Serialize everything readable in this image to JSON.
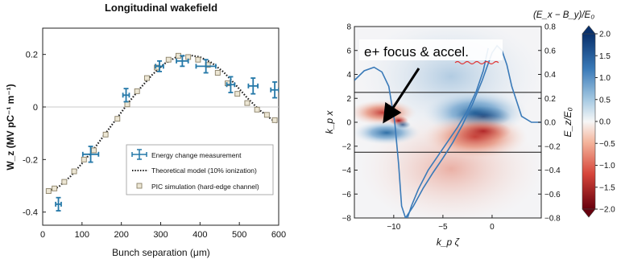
{
  "chart_data": [
    {
      "type": "scatter",
      "title": "Longitudinal wakefield",
      "xlabel": "Bunch separation (μm)",
      "ylabel": "W_z (MV pC⁻¹ m⁻¹)",
      "xlim": [
        0,
        600
      ],
      "ylim": [
        -0.45,
        0.3
      ],
      "x_ticks": [
        0,
        100,
        200,
        300,
        400,
        500,
        600
      ],
      "y_ticks": [
        -0.4,
        -0.2,
        0,
        0.2
      ],
      "legend": {
        "placement": "bottom-right",
        "entries": [
          "Energy change measurement",
          "Theoretical model (10% ionization)",
          "PIC simulation (hard-edge channel)"
        ]
      },
      "colors": {
        "measurement": "#2478a8",
        "model": "#222222",
        "pic": "#8a8067"
      },
      "series": [
        {
          "name": "Energy change measurement",
          "style": "errorbar",
          "x": [
            40,
            122,
            212,
            297,
            355,
            415,
            478,
            535,
            590
          ],
          "y": [
            -0.37,
            -0.18,
            0.045,
            0.155,
            0.175,
            0.155,
            0.085,
            0.08,
            0.065
          ],
          "xerr": [
            7,
            20,
            8,
            10,
            15,
            25,
            10,
            12,
            10
          ],
          "yerr": [
            0.025,
            0.03,
            0.025,
            0.02,
            0.02,
            0.025,
            0.03,
            0.03,
            0.03
          ]
        },
        {
          "name": "Theoretical model (10% ionization)",
          "style": "dotted-line",
          "x": [
            15,
            40,
            70,
            100,
            130,
            160,
            190,
            220,
            250,
            280,
            310,
            340,
            370,
            400,
            430,
            460,
            490,
            520,
            550,
            580,
            595
          ],
          "y": [
            -0.32,
            -0.305,
            -0.265,
            -0.215,
            -0.16,
            -0.1,
            -0.04,
            0.02,
            0.075,
            0.125,
            0.165,
            0.19,
            0.198,
            0.19,
            0.168,
            0.133,
            0.085,
            0.035,
            -0.01,
            -0.045,
            -0.06
          ]
        },
        {
          "name": "PIC simulation (hard-edge channel)",
          "style": "square-markers",
          "x": [
            15,
            30,
            55,
            80,
            105,
            130,
            160,
            190,
            215,
            240,
            265,
            290,
            320,
            345,
            370,
            395,
            420,
            445,
            470,
            495,
            520,
            545,
            570,
            590
          ],
          "y": [
            -0.32,
            -0.31,
            -0.285,
            -0.245,
            -0.2,
            -0.165,
            -0.105,
            -0.045,
            0.01,
            0.06,
            0.11,
            0.15,
            0.18,
            0.195,
            0.19,
            0.18,
            0.16,
            0.13,
            0.09,
            0.05,
            0.015,
            -0.01,
            -0.03,
            -0.05
          ]
        }
      ]
    },
    {
      "type": "heatmap",
      "colorbar_label": "(E_x − B_y)/E₀",
      "xlabel": "k_p ζ",
      "ylabel": "k_p x",
      "y2label": "E_z/E₀",
      "xlim": [
        -14,
        5
      ],
      "ylim": [
        -8,
        8
      ],
      "y2lim": [
        -0.8,
        0.8
      ],
      "x_ticks": [
        -10,
        -5,
        0
      ],
      "y_ticks": [
        -8,
        -6,
        -4,
        -2,
        0,
        2,
        4,
        6,
        8
      ],
      "y2_ticks": [
        -0.8,
        -0.6,
        -0.4,
        -0.2,
        0.0,
        0.2,
        0.4,
        0.6,
        0.8
      ],
      "colorbar_ticks": [
        -2.0,
        -1.5,
        -1.0,
        -0.5,
        0.0,
        0.5,
        1.0,
        1.5,
        2.0
      ],
      "colorbar_range": [
        -2.0,
        2.0
      ],
      "colors": {
        "positive": "#08306b",
        "zero": "#f7f7f7",
        "negative": "#67000d",
        "curve": "#3a7ab8"
      },
      "horizontal_lines_kpx": [
        2.5,
        -2.5
      ],
      "annotation": "e+ focus & accel.",
      "annotation_underlined_word": "accel.",
      "arrow_tip": {
        "kpzeta": -11.2,
        "kpx": 0.0
      },
      "series": [
        {
          "name": "Ez on axis (right axis)",
          "x": [
            -14,
            -13,
            -12,
            -11.2,
            -10.5,
            -9.9,
            -9.5,
            -9.2,
            -8.8,
            -8,
            -7,
            -6,
            -5,
            -4,
            -3,
            -2,
            -1,
            0,
            0.5,
            1,
            1.5,
            2,
            3,
            4,
            5
          ],
          "y": [
            0.35,
            0.43,
            0.46,
            0.42,
            0.3,
            0.0,
            -0.35,
            -0.7,
            -0.8,
            -0.7,
            -0.55,
            -0.42,
            -0.3,
            -0.17,
            -0.02,
            0.15,
            0.35,
            0.58,
            0.64,
            0.6,
            0.48,
            0.3,
            0.05,
            0.0,
            0.0
          ]
        },
        {
          "name": "Bubble boundary",
          "x": [
            -8.6,
            -8.2,
            -7.5,
            -6.5,
            -5.5,
            -4.5,
            -3.5,
            -2.5,
            -1.6,
            -0.9,
            -0.4
          ],
          "y": [
            -8,
            -7,
            -5.6,
            -4.0,
            -2.8,
            -1.6,
            -0.4,
            1.0,
            2.6,
            4.3,
            6.2
          ]
        }
      ]
    }
  ]
}
